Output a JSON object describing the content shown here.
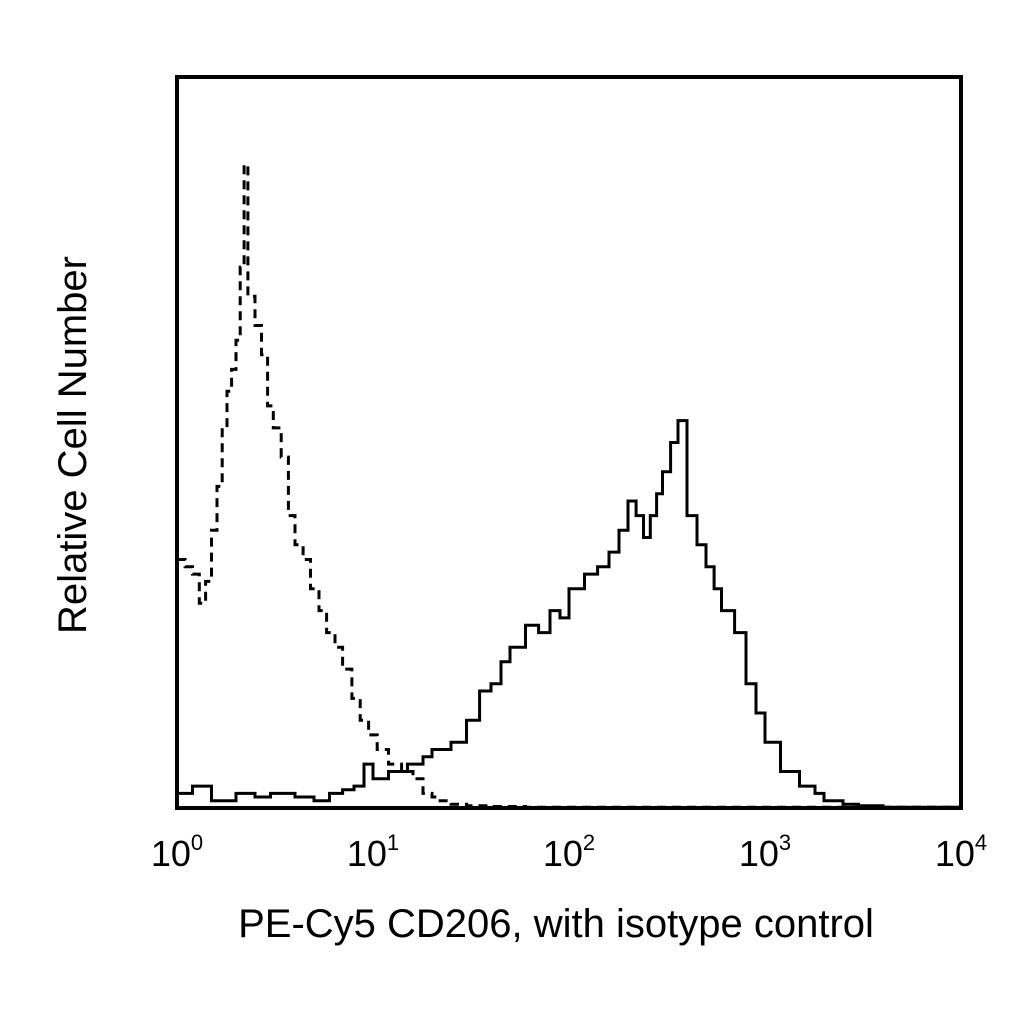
{
  "chart_data": {
    "type": "line",
    "title": "",
    "xlabel": "PE-Cy5 CD206, with isotype control",
    "ylabel": "Relative Cell Number",
    "x_scale": "log",
    "xlim": [
      1,
      10000
    ],
    "ylim": [
      0,
      100
    ],
    "grid": false,
    "legend": "none",
    "x_ticks": [
      {
        "value": 1,
        "base": "10",
        "exp": "0"
      },
      {
        "value": 10,
        "base": "10",
        "exp": "1"
      },
      {
        "value": 100,
        "base": "10",
        "exp": "2"
      },
      {
        "value": 1000,
        "base": "10",
        "exp": "3"
      },
      {
        "value": 10000,
        "base": "10",
        "exp": "4"
      }
    ],
    "series": [
      {
        "style": "dashed",
        "color": "#000000",
        "x": [
          1.0,
          1.1,
          1.2,
          1.3,
          1.4,
          1.5,
          1.6,
          1.7,
          1.8,
          1.9,
          2.0,
          2.1,
          2.2,
          2.3,
          2.5,
          2.7,
          2.9,
          3.1,
          3.4,
          3.7,
          4.0,
          4.4,
          4.8,
          5.3,
          5.8,
          6.4,
          7.0,
          7.8,
          8.6,
          9.5,
          10.5,
          12,
          14,
          16,
          18,
          20,
          22,
          25,
          30,
          40,
          60,
          100,
          1000,
          10000
        ],
        "y": [
          34,
          33,
          32,
          28,
          31,
          38,
          44,
          52,
          57,
          60,
          64,
          74,
          88,
          70,
          66,
          62,
          55,
          52,
          48,
          40,
          36,
          34,
          30,
          27,
          24,
          22,
          19,
          15,
          12,
          10,
          8,
          6,
          5,
          4,
          2,
          1.5,
          1,
          0.5,
          0.3,
          0.2,
          0.1,
          0.1,
          0.1,
          0.1
        ]
      },
      {
        "style": "solid",
        "color": "#000000",
        "x": [
          1.0,
          1.2,
          1.5,
          2.0,
          2.5,
          3.0,
          4.0,
          5.0,
          6.0,
          7.0,
          8.0,
          9.0,
          10,
          12,
          15,
          18,
          20,
          25,
          30,
          35,
          40,
          45,
          50,
          60,
          70,
          80,
          90,
          100,
          120,
          140,
          160,
          180,
          200,
          220,
          240,
          260,
          280,
          300,
          330,
          360,
          400,
          450,
          500,
          550,
          600,
          700,
          800,
          900,
          1000,
          1200,
          1500,
          1800,
          2000,
          2500,
          3000,
          4000,
          10000
        ],
        "y": [
          2,
          3,
          1,
          2,
          1.5,
          2,
          1.5,
          1,
          2,
          2.5,
          3,
          6,
          4,
          5,
          6,
          7,
          8,
          9,
          12,
          16,
          17,
          20,
          22,
          25,
          24,
          27,
          26,
          30,
          32,
          33,
          35,
          38,
          42,
          40,
          37,
          40,
          43,
          46,
          50,
          53,
          40,
          36,
          33,
          30,
          27,
          24,
          17,
          13,
          9,
          5,
          3,
          2,
          1,
          0.5,
          0.3,
          0.1,
          0.1
        ]
      }
    ]
  }
}
